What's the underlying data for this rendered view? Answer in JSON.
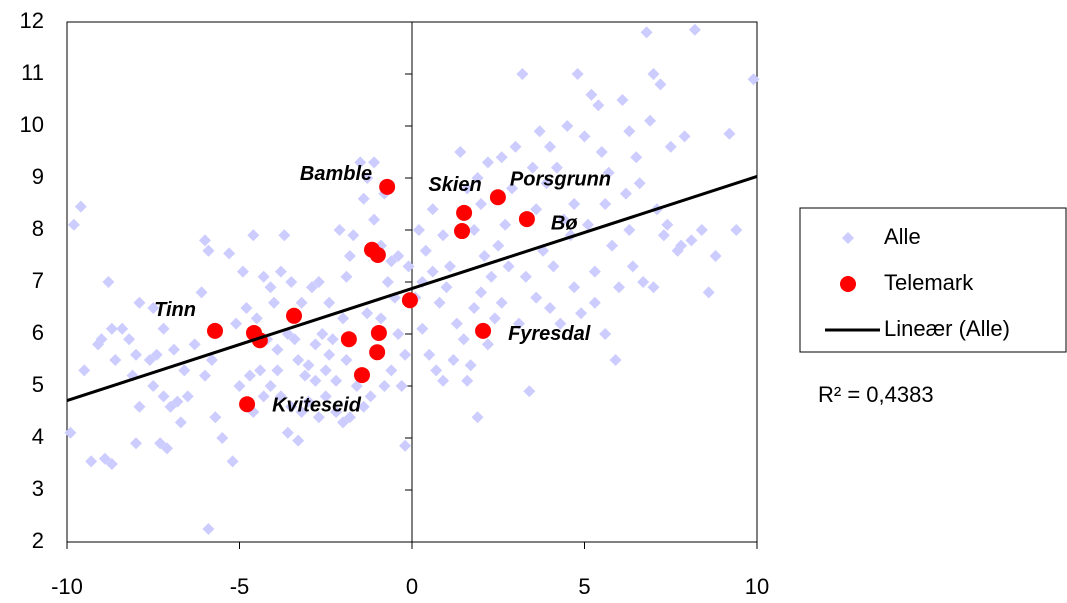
{
  "chart_data": {
    "type": "scatter",
    "xlim": [
      -10,
      10
    ],
    "xticks": [
      -10,
      -5,
      0,
      5,
      10
    ],
    "ylim": [
      2,
      12
    ],
    "yticks": [
      2,
      3,
      4,
      5,
      6,
      7,
      8,
      9,
      10,
      11,
      12
    ],
    "legend": "right",
    "series": [
      {
        "name": "Alle",
        "color": "#ccccff",
        "marker": "diamond",
        "x": [
          -9.8,
          -9.6,
          -9.9,
          -9.3,
          -8.9,
          -8.7,
          -9.5,
          -9.1,
          -9.0,
          -8.6,
          -8.4,
          -8.2,
          -8.7,
          -8.8,
          -8.0,
          -8.1,
          -7.6,
          -7.4,
          -7.9,
          -7.5,
          -7.2,
          -7.0,
          -7.3,
          -7.1,
          -8.0,
          -7.9,
          -7.5,
          -7.2,
          -6.9,
          -6.6,
          -6.8,
          -6.5,
          -6.7,
          -6.1,
          -6.0,
          -5.9,
          -6.3,
          -5.8,
          -6.0,
          -5.7,
          -5.5,
          -5.2,
          -5.9,
          -5.3,
          -4.9,
          -4.6,
          -4.3,
          -4.0,
          -4.1,
          -3.8,
          -3.7,
          -3.5,
          -5.1,
          -4.8,
          -4.5,
          -4.2,
          -3.9,
          -3.6,
          -3.3,
          -3.0,
          -2.8,
          -2.6,
          -2.4,
          -2.2,
          -3.2,
          -2.9,
          -2.7,
          -2.4,
          -2.0,
          -1.8,
          -1.7,
          -2.1,
          -1.9,
          -5.0,
          -4.7,
          -4.4,
          -4.1,
          -3.8,
          -3.5,
          -3.2,
          -3.0,
          -2.7,
          -2.5,
          -2.2,
          -2.0,
          -3.6,
          -3.3,
          -4.6,
          -4.3,
          -3.9,
          -3.4,
          -3.1,
          -2.8,
          -2.5,
          -2.3,
          -1.9,
          -1.6,
          -1.4,
          -1.8,
          -1.2,
          -1.5,
          -1.3,
          -1.1,
          -1.4,
          -0.8,
          -1.1,
          -0.9,
          -0.6,
          -0.7,
          -1.3,
          -0.9,
          -0.5,
          -0.4,
          -0.2,
          -0.3,
          -0.6,
          -0.8,
          -0.2,
          -0.4,
          -0.1,
          0.2,
          0.4,
          0.6,
          0.8,
          0.9,
          1.1,
          0.3,
          0.5,
          0.7,
          0.9,
          1.2,
          1.3,
          1.5,
          1.7,
          1.4,
          1.6,
          1.8,
          2.0,
          2.2,
          1.9,
          2.1,
          2.3,
          2.5,
          2.0,
          1.8,
          2.4,
          2.6,
          2.8,
          1.9,
          1.6,
          2.2,
          0.3,
          0.6,
          0.1,
          1.0,
          2.7,
          2.9,
          3.2,
          3.5,
          3.7,
          4.0,
          4.2,
          3.9,
          3.6,
          4.5,
          4.8,
          5.2,
          5.4,
          5.0,
          5.5,
          5.7,
          4.7,
          4.4,
          3.8,
          4.1,
          4.6,
          5.1,
          5.6,
          3.3,
          3.6,
          4.0,
          4.3,
          4.7,
          5.3,
          5.8,
          3.4,
          3.1,
          5.9,
          5.6,
          4.9,
          5.3,
          3.0,
          2.6,
          6.1,
          6.3,
          6.5,
          6.8,
          7.0,
          7.2,
          6.9,
          7.5,
          7.9,
          8.2,
          6.2,
          6.6,
          7.1,
          7.4,
          7.7,
          8.1,
          8.4,
          8.8,
          9.2,
          9.4,
          9.9,
          6.4,
          6.7,
          7.0,
          7.3,
          6.0,
          8.6,
          6.3,
          7.8
        ],
        "values": [
          8.1,
          8.45,
          4.1,
          3.55,
          3.6,
          3.5,
          5.3,
          5.8,
          5.9,
          5.5,
          6.1,
          5.9,
          6.1,
          7.0,
          5.6,
          5.2,
          5.5,
          5.6,
          4.6,
          5.0,
          4.8,
          4.6,
          3.9,
          3.8,
          3.9,
          6.6,
          6.5,
          6.1,
          5.7,
          5.3,
          4.7,
          4.8,
          4.3,
          6.8,
          7.8,
          7.6,
          5.8,
          5.5,
          5.2,
          4.4,
          4.0,
          3.55,
          2.25,
          7.55,
          7.2,
          7.9,
          7.1,
          6.6,
          6.9,
          7.2,
          7.9,
          7.0,
          6.2,
          6.5,
          6.3,
          5.9,
          5.7,
          6.0,
          5.5,
          5.4,
          5.8,
          6.0,
          5.6,
          5.1,
          6.6,
          6.9,
          7.0,
          6.6,
          6.3,
          7.5,
          7.9,
          8.0,
          7.1,
          5.0,
          5.2,
          5.3,
          5.0,
          4.8,
          4.6,
          4.5,
          4.7,
          4.4,
          4.8,
          4.5,
          4.3,
          4.1,
          3.95,
          4.5,
          4.8,
          5.3,
          5.9,
          5.2,
          5.1,
          5.3,
          5.9,
          5.5,
          5.0,
          4.6,
          4.4,
          4.8,
          9.3,
          9.0,
          9.3,
          8.6,
          8.7,
          8.2,
          7.7,
          7.4,
          7.0,
          6.4,
          6.3,
          6.7,
          6.0,
          5.6,
          5.0,
          5.3,
          5.0,
          3.85,
          7.5,
          7.3,
          8.0,
          7.6,
          7.2,
          6.6,
          7.9,
          7.3,
          6.1,
          5.6,
          5.3,
          5.1,
          5.5,
          6.2,
          5.9,
          5.4,
          9.5,
          8.8,
          8.0,
          8.5,
          9.3,
          9.0,
          7.5,
          7.1,
          7.7,
          6.8,
          6.5,
          6.3,
          6.6,
          7.3,
          4.4,
          5.1,
          5.8,
          7.0,
          8.4,
          6.7,
          6.9,
          8.1,
          8.8,
          11.0,
          9.2,
          9.9,
          9.6,
          9.2,
          8.9,
          8.4,
          10.0,
          11.0,
          10.6,
          10.4,
          9.8,
          9.5,
          9.1,
          8.5,
          8.2,
          7.6,
          7.3,
          7.9,
          8.1,
          8.5,
          7.1,
          6.7,
          6.5,
          6.2,
          6.9,
          7.2,
          7.7,
          4.9,
          6.2,
          5.5,
          6.0,
          6.4,
          6.6,
          9.6,
          9.4,
          10.5,
          9.9,
          9.4,
          11.8,
          11.0,
          10.8,
          10.1,
          9.6,
          9.8,
          11.85,
          8.7,
          8.9,
          8.4,
          8.1,
          7.6,
          7.8,
          8.0,
          7.5,
          9.85,
          8.0,
          10.9,
          7.3,
          7.0,
          6.9,
          7.9,
          6.9,
          6.8,
          8.0,
          7.7
        ]
      },
      {
        "name": "Telemark",
        "color": "#ff0000",
        "marker": "circle",
        "x": [
          -0.72,
          1.51,
          1.45,
          2.49,
          3.33,
          -1.16,
          -0.99,
          -0.06,
          -5.71,
          -4.58,
          -4.41,
          -3.42,
          -1.83,
          -0.96,
          -1.01,
          -1.45,
          2.06,
          -4.78
        ],
        "values": [
          8.83,
          8.33,
          7.98,
          8.63,
          8.21,
          7.62,
          7.52,
          6.65,
          6.06,
          6.02,
          5.88,
          6.35,
          5.9,
          6.02,
          5.65,
          5.21,
          6.06,
          4.65
        ],
        "labels": [
          "Bamble",
          "Skien",
          null,
          "Porsgrunn",
          "Bø",
          null,
          null,
          null,
          "Tinn",
          null,
          null,
          null,
          null,
          null,
          null,
          null,
          "Fyresdal",
          "Kviteseid"
        ]
      }
    ],
    "trendline": {
      "name": "Lineær (Alle)",
      "color": "#000000",
      "slope": 0.2155,
      "intercept": 6.875
    },
    "annotation": "R² = 0,4383"
  }
}
